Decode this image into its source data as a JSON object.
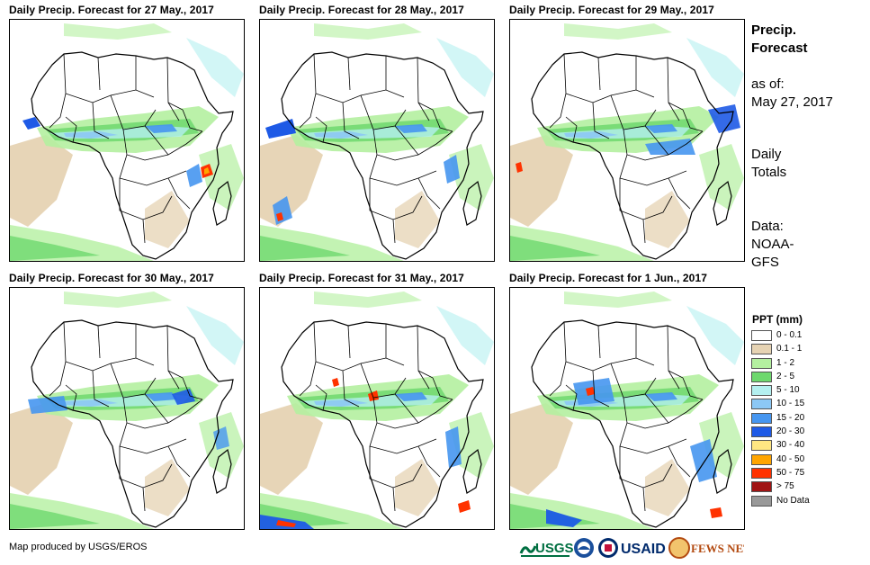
{
  "panels": [
    {
      "title": "Daily Precip. Forecast for 27 May., 2017"
    },
    {
      "title": "Daily Precip. Forecast for 28 May., 2017"
    },
    {
      "title": "Daily Precip. Forecast for 29 May., 2017"
    },
    {
      "title": "Daily Precip. Forecast for 30 May., 2017"
    },
    {
      "title": "Daily Precip. Forecast for 31 May., 2017"
    },
    {
      "title": "Daily Precip. Forecast for 1 Jun., 2017"
    }
  ],
  "sidebar": {
    "title_line1": "Precip.",
    "title_line2": "Forecast",
    "asof_line1": "as of:",
    "asof_line2": "May 27, 2017",
    "totals_line1": "Daily",
    "totals_line2": "Totals",
    "data_line1": "Data:",
    "data_line2": "NOAA-",
    "data_line3": "GFS"
  },
  "legend": {
    "title": "PPT (mm)",
    "items": [
      {
        "label": "0 - 0.1",
        "color": "#ffffff"
      },
      {
        "label": "0.1 - 1",
        "color": "#e6d3b3"
      },
      {
        "label": "1 - 2",
        "color": "#b4f0a0"
      },
      {
        "label": "2 - 5",
        "color": "#6ed86e"
      },
      {
        "label": "5 - 10",
        "color": "#b4f0f0"
      },
      {
        "label": "10 - 15",
        "color": "#8cc8f5"
      },
      {
        "label": "15 - 20",
        "color": "#4696f0"
      },
      {
        "label": "20 - 30",
        "color": "#1e5ae6"
      },
      {
        "label": "30 - 40",
        "color": "#ffe682"
      },
      {
        "label": "40 - 50",
        "color": "#ffa500"
      },
      {
        "label": "50 - 75",
        "color": "#ff3200"
      },
      {
        "label": "> 75",
        "color": "#a01414"
      },
      {
        "label": "No Data",
        "color": "#999999"
      }
    ]
  },
  "footer": {
    "credit": "Map produced by USGS/EROS",
    "logos": [
      "USGS",
      "NOAA",
      "USAID",
      "FEWS NET"
    ]
  }
}
